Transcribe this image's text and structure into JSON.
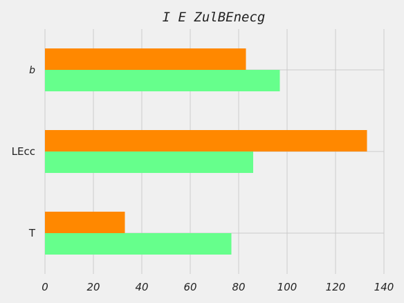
{
  "chart_data": {
    "type": "bar",
    "orientation": "horizontal",
    "title": "I E  ZulBEnecg",
    "categories": [
      "T",
      "LEcc",
      "b"
    ],
    "series": [
      {
        "color": "#66ff8c",
        "values": [
          77,
          86,
          97
        ]
      },
      {
        "color": "#ff8800",
        "values": [
          33,
          133,
          83
        ]
      }
    ],
    "xlim": [
      0,
      140
    ],
    "xticks": [
      0,
      20,
      40,
      60,
      80,
      100,
      120,
      140
    ],
    "grid": true
  }
}
